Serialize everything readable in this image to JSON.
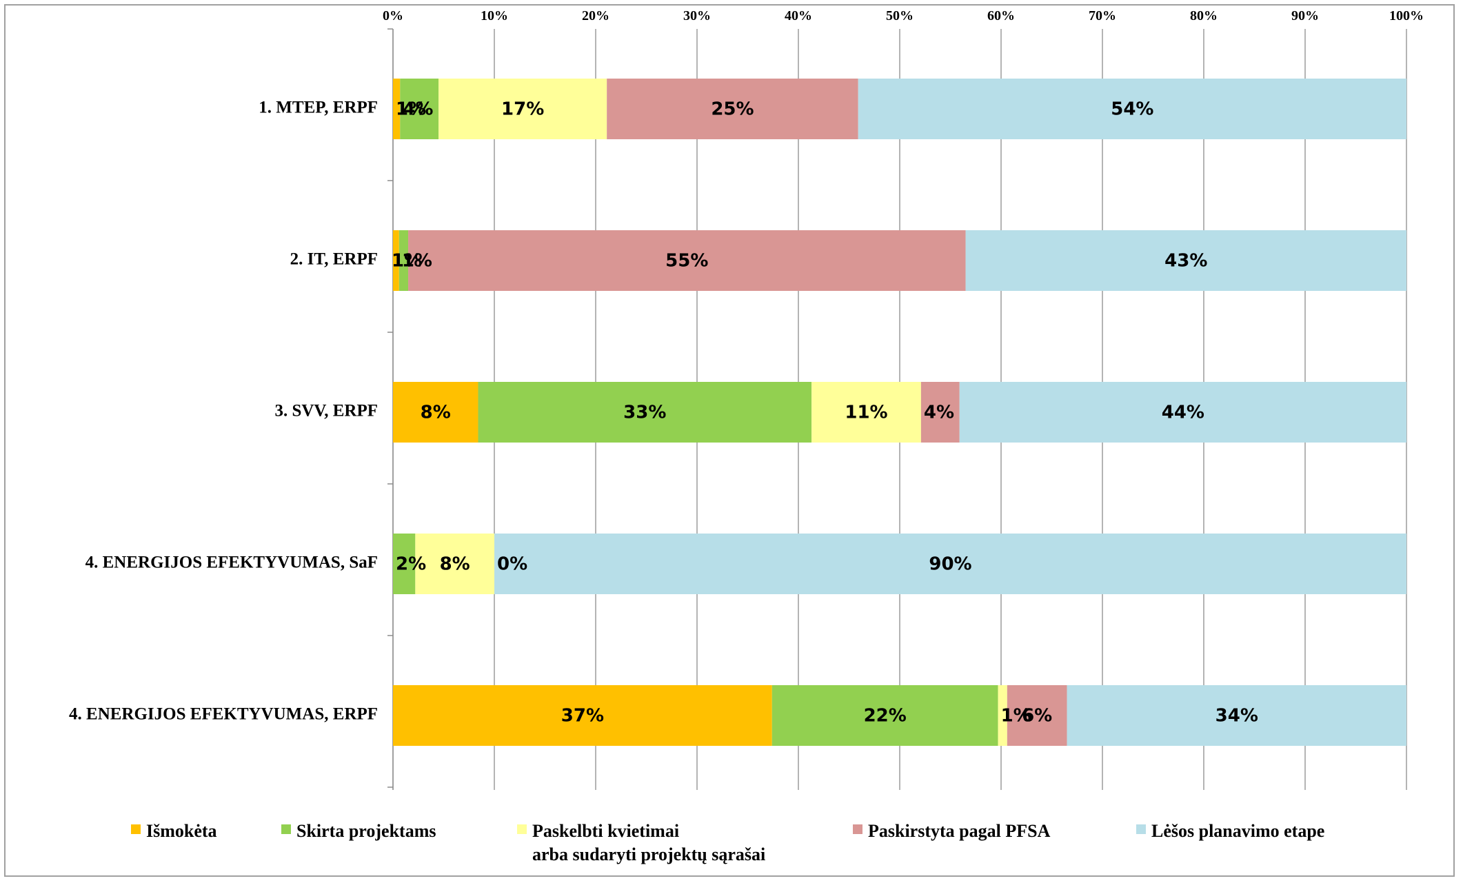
{
  "chart_data": {
    "type": "bar",
    "orientation": "horizontal",
    "stacked": "percent",
    "categories": [
      "1. MTEP, ERPF",
      "2. IT, ERPF",
      "3. SVV, ERPF",
      "4. ENERGIJOS EFEKTYVUMAS, SaF",
      "4. ENERGIJOS EFEKTYVUMAS, ERPF"
    ],
    "series": [
      {
        "name": "Išmokėta",
        "color": "#FFC000",
        "values": [
          0.7,
          0.6,
          8.4,
          0.0,
          37.4
        ],
        "labels": [
          "1%",
          "",
          "8%",
          "",
          "37%"
        ]
      },
      {
        "name": "Skirta projektams",
        "color": "#92D050",
        "values": [
          3.8,
          0.9,
          32.9,
          2.2,
          22.3
        ],
        "labels": [
          "4%",
          "1%",
          "33%",
          "2%",
          "22%"
        ]
      },
      {
        "name": "Paskelbti kvietimai arba sudaryti projektų sąrašai",
        "name_lines": [
          "Paskelbti kvietimai",
          "arba sudaryti projektų sąrašai"
        ],
        "color": "#FFFF99",
        "values": [
          16.6,
          0.0,
          10.8,
          7.8,
          0.9
        ],
        "labels": [
          "17%",
          "",
          "11%",
          "8%",
          "1%"
        ]
      },
      {
        "name": "Paskirstyta pagal  PFSA",
        "color": "#D99694",
        "values": [
          24.8,
          55.0,
          3.8,
          0.0,
          5.9
        ],
        "labels": [
          "25%",
          "55%",
          "4%",
          "0%",
          "6%"
        ]
      },
      {
        "name": "Lėšos planavimo etape",
        "color": "#B7DEE8",
        "values": [
          54.1,
          43.5,
          44.1,
          90.0,
          33.5
        ],
        "labels": [
          "54%",
          "43%",
          "44%",
          "90%",
          "34%"
        ]
      }
    ],
    "extra_labels": [
      {
        "category_index": 1,
        "text": "1%",
        "series_index": 0
      }
    ],
    "xlim": [
      0,
      100
    ],
    "xticks": [
      "0%",
      "10%",
      "20%",
      "30%",
      "40%",
      "50%",
      "60%",
      "70%",
      "80%",
      "90%",
      "100%"
    ],
    "grid": true,
    "legend": "bottom",
    "xaxis_position": "top"
  }
}
